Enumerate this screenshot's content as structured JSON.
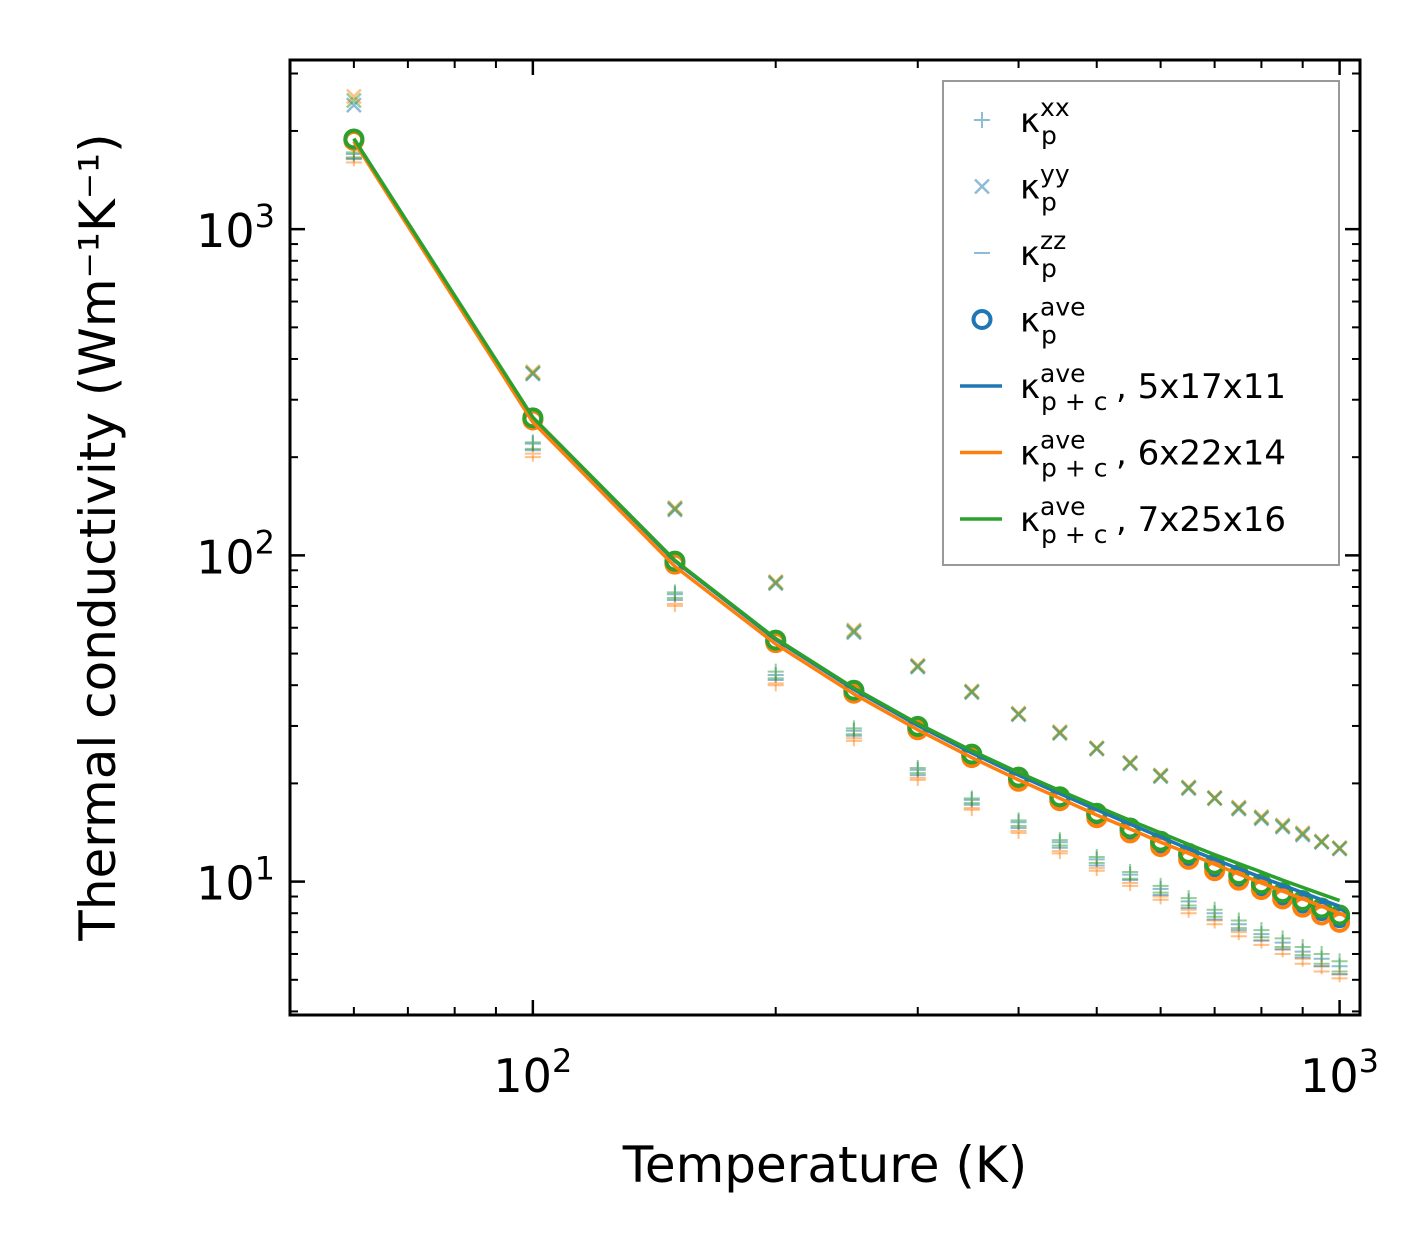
{
  "chart_data": {
    "type": "scatter",
    "title": "",
    "xlabel": "Temperature (K)",
    "ylabel": "Thermal conductivity (Wm⁻¹K⁻¹)",
    "xscale": "log",
    "yscale": "log",
    "xlim": [
      50,
      1060
    ],
    "ylim": [
      3.9,
      3300
    ],
    "x_ticks": [
      {
        "value": 100,
        "base": "10",
        "exp": "2"
      },
      {
        "value": 1000,
        "base": "10",
        "exp": "3"
      }
    ],
    "y_ticks": [
      {
        "value": 10,
        "base": "10",
        "exp": "1"
      },
      {
        "value": 100,
        "base": "10",
        "exp": "2"
      },
      {
        "value": 1000,
        "base": "10",
        "exp": "3"
      }
    ],
    "grid": false,
    "legend_position": "top-right",
    "x": [
      60,
      100,
      150,
      200,
      250,
      300,
      350,
      400,
      450,
      500,
      550,
      600,
      650,
      700,
      750,
      800,
      850,
      900,
      950,
      1000
    ],
    "series": [
      {
        "name": "kxx",
        "kind": "marker",
        "marker": "plus",
        "color": "#1f77b4",
        "opacity": 0.5,
        "label_base": "κ",
        "label_sub": "p",
        "label_sup": "xx",
        "values": [
          1700,
          220,
          76,
          43,
          29,
          22,
          17.8,
          15.2,
          13.2,
          11.7,
          10.5,
          9.5,
          8.7,
          8.0,
          7.4,
          6.9,
          6.5,
          6.1,
          5.8,
          5.5
        ]
      },
      {
        "name": "kxx-b",
        "kind": "marker",
        "marker": "plus",
        "color": "#ff7f0e",
        "opacity": 0.5,
        "legend": false,
        "values": [
          1650,
          205,
          71,
          40.5,
          27.5,
          20.8,
          16.8,
          14.3,
          12.4,
          11.0,
          9.9,
          9.0,
          8.2,
          7.6,
          7.0,
          6.6,
          6.2,
          5.8,
          5.5,
          5.2
        ]
      },
      {
        "name": "kxx-c",
        "kind": "marker",
        "marker": "plus",
        "color": "#2ca02c",
        "opacity": 0.5,
        "legend": false,
        "values": [
          1720,
          222,
          77,
          44,
          29.5,
          22.3,
          18.0,
          15.4,
          13.4,
          11.9,
          10.7,
          9.7,
          8.9,
          8.2,
          7.6,
          7.1,
          6.7,
          6.3,
          6.0,
          5.7
        ]
      },
      {
        "name": "kyy",
        "kind": "marker",
        "marker": "x",
        "color": "#1f77b4",
        "opacity": 0.5,
        "label_base": "κ",
        "label_sub": "p",
        "label_sup": "yy",
        "values": [
          2400,
          360,
          138,
          82,
          58,
          45.5,
          38,
          32.5,
          28.5,
          25.5,
          23,
          21,
          19.3,
          18,
          16.7,
          15.6,
          14.7,
          13.9,
          13.2,
          12.6
        ]
      },
      {
        "name": "kyy-b",
        "kind": "marker",
        "marker": "x",
        "color": "#ff7f0e",
        "opacity": 0.5,
        "legend": false,
        "values": [
          2550,
          365,
          140,
          83,
          59,
          46,
          38.4,
          32.8,
          28.8,
          25.7,
          23.2,
          21.2,
          19.5,
          18.1,
          16.9,
          15.8,
          14.9,
          14.1,
          13.3,
          12.7
        ]
      },
      {
        "name": "kyy-c",
        "kind": "marker",
        "marker": "x",
        "color": "#2ca02c",
        "opacity": 0.5,
        "legend": false,
        "values": [
          2480,
          362,
          139,
          82.5,
          58.5,
          45.7,
          38.2,
          32.6,
          28.6,
          25.6,
          23.1,
          21.1,
          19.4,
          18.0,
          16.8,
          15.7,
          14.8,
          14.0,
          13.25,
          12.65
        ]
      },
      {
        "name": "kzz",
        "kind": "marker",
        "marker": "dash",
        "color": "#1f77b4",
        "opacity": 0.5,
        "label_base": "κ",
        "label_sub": "p",
        "label_sup": "zz",
        "values": [
          1640,
          210,
          73,
          41.5,
          28,
          21.2,
          17.2,
          14.6,
          12.7,
          11.2,
          10.1,
          9.1,
          8.3,
          7.65,
          7.1,
          6.6,
          6.2,
          5.85,
          5.5,
          5.2
        ]
      },
      {
        "name": "kzz-b",
        "kind": "marker",
        "marker": "dash",
        "color": "#ff7f0e",
        "opacity": 0.5,
        "legend": false,
        "values": [
          1600,
          200,
          70,
          40,
          27,
          20.5,
          16.6,
          14.1,
          12.2,
          10.8,
          9.7,
          8.8,
          8.0,
          7.4,
          6.8,
          6.4,
          6.0,
          5.6,
          5.3,
          5.05
        ]
      },
      {
        "name": "kzz-c",
        "kind": "marker",
        "marker": "dash",
        "color": "#2ca02c",
        "opacity": 0.5,
        "legend": false,
        "values": [
          1660,
          212,
          74,
          42,
          28.3,
          21.5,
          17.4,
          14.8,
          12.9,
          11.4,
          10.2,
          9.25,
          8.45,
          7.8,
          7.2,
          6.75,
          6.3,
          5.95,
          5.6,
          5.3
        ]
      },
      {
        "name": "kave",
        "kind": "marker",
        "marker": "circle",
        "color": "#1f77b4",
        "opacity": 1,
        "label_base": "κ",
        "label_sub": "p",
        "label_sup": "ave",
        "values": [
          1880,
          262,
          95,
          54.5,
          38.3,
          29.6,
          24.3,
          20.6,
          18.0,
          16.0,
          14.4,
          13.1,
          12.0,
          11.1,
          10.35,
          9.7,
          9.1,
          8.6,
          8.15,
          7.75
        ]
      },
      {
        "name": "kave-b",
        "kind": "marker",
        "marker": "circle",
        "color": "#ff7f0e",
        "opacity": 1,
        "legend": false,
        "values": [
          1870,
          260,
          94,
          54,
          37.8,
          29.2,
          24.0,
          20.3,
          17.7,
          15.7,
          14.1,
          12.8,
          11.7,
          10.8,
          10.1,
          9.45,
          8.85,
          8.35,
          7.9,
          7.5
        ]
      },
      {
        "name": "kave-c",
        "kind": "marker",
        "marker": "circle",
        "color": "#2ca02c",
        "opacity": 1,
        "legend": false,
        "values": [
          1890,
          264,
          96,
          55,
          38.6,
          29.9,
          24.6,
          20.9,
          18.2,
          16.2,
          14.6,
          13.3,
          12.2,
          11.3,
          10.5,
          9.85,
          9.25,
          8.75,
          8.3,
          7.9
        ]
      },
      {
        "name": "kpc-5x17x11",
        "kind": "line",
        "color": "#1f77b4",
        "opacity": 1,
        "label_base": "κ",
        "label_sub": "p + c",
        "label_sup": "ave",
        "label_suffix": ", 5x17x11",
        "values": [
          1890,
          263,
          96,
          55.2,
          38.8,
          30.1,
          24.8,
          21.2,
          18.6,
          16.6,
          15.0,
          13.7,
          12.6,
          11.7,
          10.95,
          10.3,
          9.75,
          9.25,
          8.8,
          8.4
        ]
      },
      {
        "name": "kpc-6x22x14",
        "kind": "line",
        "color": "#ff7f0e",
        "opacity": 1,
        "label_base": "κ",
        "label_sub": "p + c",
        "label_sup": "ave",
        "label_suffix": ", 6x22x14",
        "values": [
          1860,
          256,
          92.5,
          53.5,
          37.6,
          29.2,
          24.0,
          20.5,
          18.0,
          16.0,
          14.5,
          13.2,
          12.2,
          11.3,
          10.55,
          9.9,
          9.35,
          8.85,
          8.4,
          8.0
        ]
      },
      {
        "name": "kpc-7x25x16",
        "kind": "line",
        "color": "#2ca02c",
        "opacity": 1,
        "label_base": "κ",
        "label_sub": "p + c",
        "label_sup": "ave",
        "label_suffix": ", 7x25x16",
        "values": [
          1895,
          265,
          96.5,
          55.6,
          39.2,
          30.5,
          25.2,
          21.6,
          19.0,
          17.0,
          15.4,
          14.1,
          13.0,
          12.1,
          11.35,
          10.7,
          10.1,
          9.6,
          9.15,
          8.75
        ]
      }
    ]
  }
}
